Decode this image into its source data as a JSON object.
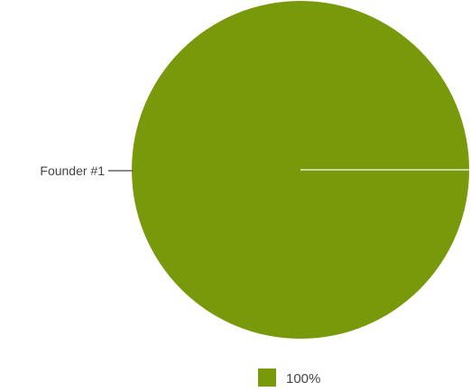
{
  "chart_data": {
    "type": "pie",
    "slices": [
      {
        "label": "Founder #1",
        "value": 100,
        "color": "#78990a"
      }
    ],
    "legend": {
      "placement": "bottom",
      "entries": [
        {
          "text": "100%",
          "color": "#78990a"
        }
      ]
    },
    "divider_color": "#c9d7a3"
  }
}
